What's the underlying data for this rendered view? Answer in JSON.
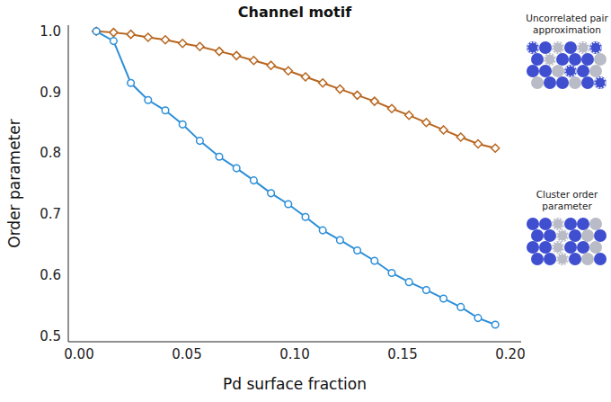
{
  "chart_data": {
    "type": "line",
    "title": "Channel motif",
    "xlabel": "Pd surface fraction",
    "ylabel": "Order parameter",
    "x": [
      0.008,
      0.016,
      0.024,
      0.032,
      0.04,
      0.048,
      0.056,
      0.065,
      0.073,
      0.081,
      0.089,
      0.097,
      0.105,
      0.113,
      0.121,
      0.129,
      0.137,
      0.145,
      0.153,
      0.161,
      0.169,
      0.177,
      0.185,
      0.193
    ],
    "series": [
      {
        "name": "Uncorrelated pair approximation",
        "color": "#b8661f",
        "marker": "diamond",
        "values": [
          1.0,
          0.998,
          0.995,
          0.99,
          0.986,
          0.98,
          0.975,
          0.967,
          0.96,
          0.952,
          0.944,
          0.935,
          0.925,
          0.915,
          0.905,
          0.895,
          0.885,
          0.873,
          0.862,
          0.85,
          0.838,
          0.826,
          0.815,
          0.808
        ]
      },
      {
        "name": "Cluster order parameter",
        "color": "#2e8fd8",
        "marker": "circle",
        "values": [
          1.0,
          0.984,
          0.915,
          0.887,
          0.87,
          0.847,
          0.82,
          0.794,
          0.775,
          0.755,
          0.734,
          0.716,
          0.695,
          0.673,
          0.657,
          0.64,
          0.623,
          0.603,
          0.588,
          0.575,
          0.561,
          0.547,
          0.529,
          0.518
        ]
      }
    ],
    "xlim": [
      -0.005,
      0.205
    ],
    "ylim": [
      0.49,
      1.01
    ],
    "xticks": [
      {
        "value": 0,
        "label": "0.00"
      },
      {
        "value": 0.05,
        "label": "0.05"
      },
      {
        "value": 0.1,
        "label": "0.10"
      },
      {
        "value": 0.15,
        "label": "0.15"
      },
      {
        "value": 0.2,
        "label": "0.20"
      }
    ],
    "yticks": [
      0.5,
      0.6,
      0.7,
      0.8,
      0.9,
      {
        "value": 1.0,
        "label": "1.0"
      }
    ],
    "grid": false,
    "legend": "right"
  }
}
